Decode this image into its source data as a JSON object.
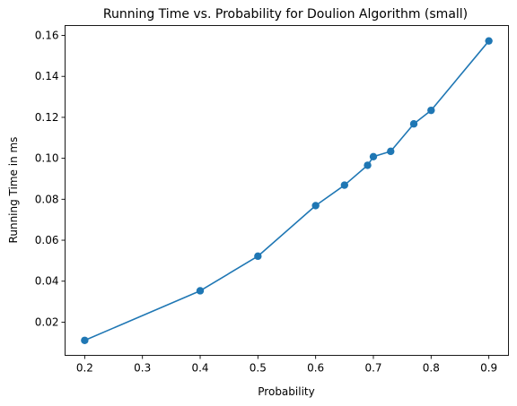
{
  "chart_data": {
    "type": "line",
    "title": "Running Time vs. Probability for Doulion Algorithm (small)",
    "xlabel": "Probability",
    "ylabel": "Running Time in ms",
    "xlim": [
      0.166,
      0.934
    ],
    "ylim": [
      0.00378,
      0.16482
    ],
    "xticks": [
      0.2,
      0.3,
      0.4,
      0.5,
      0.6,
      0.7,
      0.8,
      0.9
    ],
    "xtick_labels": [
      "0.2",
      "0.3",
      "0.4",
      "0.5",
      "0.6",
      "0.7",
      "0.8",
      "0.9"
    ],
    "yticks": [
      0.02,
      0.04,
      0.06,
      0.08,
      0.1,
      0.12,
      0.14,
      0.16
    ],
    "ytick_labels": [
      "0.02",
      "0.04",
      "0.06",
      "0.08",
      "0.10",
      "0.12",
      "0.14",
      "0.16"
    ],
    "grid": false,
    "legend": false,
    "color": "#1f77b4",
    "series": [
      {
        "x": [
          0.2,
          0.4,
          0.5,
          0.6,
          0.65,
          0.69,
          0.7,
          0.73,
          0.77,
          0.8,
          0.9
        ],
        "y": [
          0.0111,
          0.0353,
          0.0522,
          0.0769,
          0.0869,
          0.0966,
          0.1008,
          0.1034,
          0.1168,
          0.1234,
          0.1573
        ],
        "marker": "circle"
      }
    ]
  }
}
